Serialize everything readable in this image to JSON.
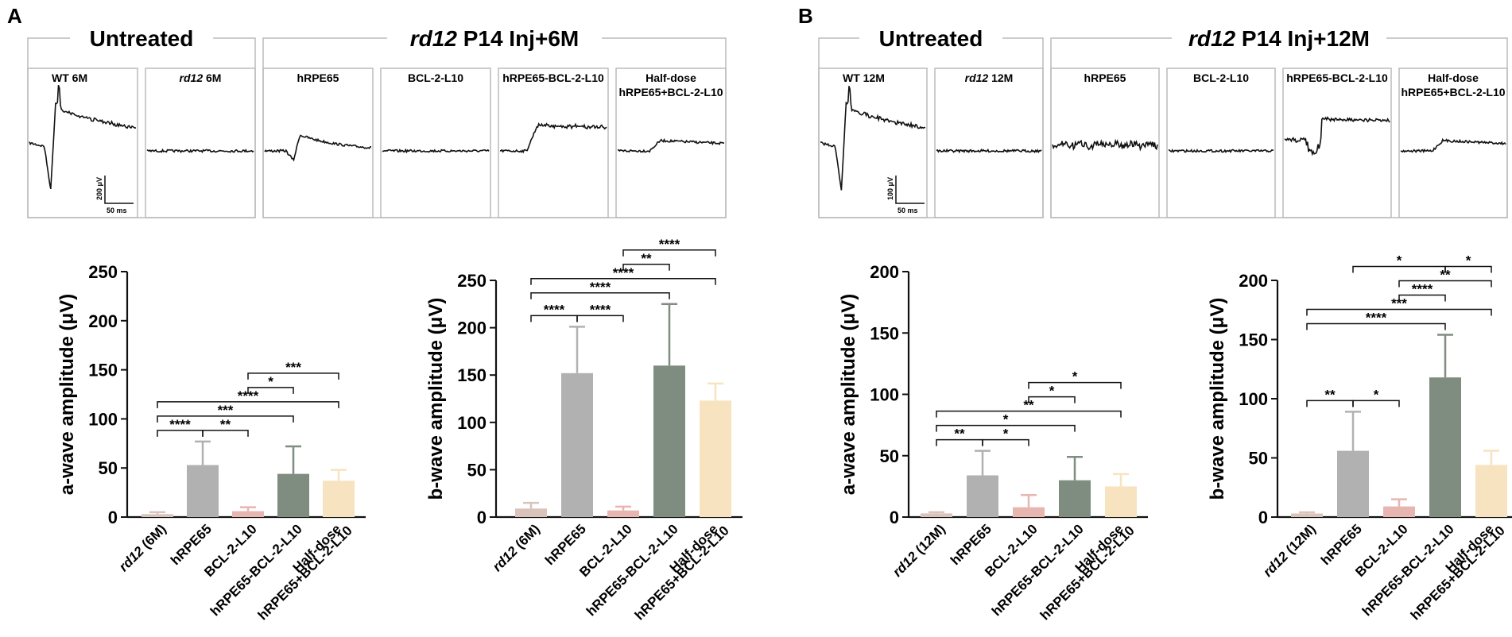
{
  "panels": [
    {
      "letter": "A",
      "group_untreated": "Untreated",
      "group_treated_italic": "rd12",
      "group_treated_rest": " P14 Inj+6M",
      "traces": [
        {
          "label": "WT 6M",
          "italic": "",
          "kind": "wt"
        },
        {
          "label": " 6M",
          "italic": "rd12",
          "kind": "flat"
        },
        {
          "label": "hRPE65",
          "italic": "",
          "kind": "mid"
        },
        {
          "label": "BCL-2-L10",
          "italic": "",
          "kind": "flat"
        },
        {
          "label": "hRPE65-BCL-2-L10",
          "italic": "",
          "kind": "strong"
        },
        {
          "label": "Half-dose",
          "label2": "hRPE65+BCL-2-L10",
          "italic": "",
          "kind": "weak"
        }
      ],
      "scale_v": "200 μV",
      "scale_t": "50 ms"
    },
    {
      "letter": "B",
      "group_untreated": "Untreated",
      "group_treated_italic": "rd12",
      "group_treated_rest": " P14 Inj+12M",
      "traces": [
        {
          "label": "WT 12M",
          "italic": "",
          "kind": "wt"
        },
        {
          "label": " 12M",
          "italic": "rd12",
          "kind": "flat"
        },
        {
          "label": "hRPE65",
          "italic": "",
          "kind": "noisy"
        },
        {
          "label": "BCL-2-L10",
          "italic": "",
          "kind": "flat"
        },
        {
          "label": "hRPE65-BCL-2-L10",
          "italic": "",
          "kind": "strong12"
        },
        {
          "label": "Half-dose",
          "label2": "hRPE65+BCL-2-L10",
          "italic": "",
          "kind": "weak"
        }
      ],
      "scale_v": "100 μV",
      "scale_t": "50 ms"
    }
  ],
  "colors": [
    "#d9c3bb",
    "#b1b1b1",
    "#e7b6b1",
    "#7f8d81",
    "#f7e3bf"
  ],
  "chart_data": [
    {
      "type": "bar",
      "title": "",
      "ylabel": "a-wave amplitude (μV)",
      "ylim": [
        0,
        250
      ],
      "yticks": [
        "0",
        "50",
        "100",
        "150",
        "200",
        "250"
      ],
      "categories": [
        {
          "italic": "rd12",
          "rest": " (6M)"
        },
        {
          "italic": "",
          "rest": "hRPE65"
        },
        {
          "italic": "",
          "rest": "BCL-2-L10"
        },
        {
          "italic": "",
          "rest": "hRPE65-BCL-2-L10"
        },
        {
          "italic": "",
          "rest": "Half-dose",
          "rest2": "hRPE65+BCL-2-L10"
        }
      ],
      "values": [
        3,
        53,
        6,
        44,
        37
      ],
      "errors": [
        2,
        24,
        4,
        28,
        11
      ],
      "significance": [
        {
          "from": 0,
          "to": 1,
          "label": "****"
        },
        {
          "from": 1,
          "to": 2,
          "label": "**"
        },
        {
          "from": 0,
          "to": 3,
          "label": "***"
        },
        {
          "from": 0,
          "to": 4,
          "label": "****"
        },
        {
          "from": 2,
          "to": 3,
          "label": "*"
        },
        {
          "from": 2,
          "to": 4,
          "label": "***"
        }
      ]
    },
    {
      "type": "bar",
      "title": "",
      "ylabel": "b-wave amplitude (μV)",
      "ylim": [
        0,
        250
      ],
      "yticks": [
        "0",
        "50",
        "100",
        "150",
        "200",
        "250"
      ],
      "categories": [
        {
          "italic": "rd12",
          "rest": " (6M)"
        },
        {
          "italic": "",
          "rest": "hRPE65"
        },
        {
          "italic": "",
          "rest": "BCL-2-L10"
        },
        {
          "italic": "",
          "rest": "hRPE65-BCL-2-L10"
        },
        {
          "italic": "",
          "rest": "Half-dose",
          "rest2": "hRPE65+BCL-2-L10"
        }
      ],
      "values": [
        9,
        152,
        7,
        160,
        123
      ],
      "errors": [
        6,
        49,
        4,
        65,
        18
      ],
      "significance": [
        {
          "from": 0,
          "to": 1,
          "label": "****"
        },
        {
          "from": 1,
          "to": 2,
          "label": "****"
        },
        {
          "from": 0,
          "to": 3,
          "label": "****"
        },
        {
          "from": 0,
          "to": 4,
          "label": "****"
        },
        {
          "from": 2,
          "to": 3,
          "label": "**"
        },
        {
          "from": 2,
          "to": 4,
          "label": "****"
        }
      ]
    },
    {
      "type": "bar",
      "title": "",
      "ylabel": "a-wave amplitude (μV)",
      "ylim": [
        0,
        200
      ],
      "yticks": [
        "0",
        "50",
        "100",
        "150",
        "200"
      ],
      "categories": [
        {
          "italic": "rd12",
          "rest": " (12M)"
        },
        {
          "italic": "",
          "rest": "hRPE65"
        },
        {
          "italic": "",
          "rest": "BCL-2-L10"
        },
        {
          "italic": "",
          "rest": "hRPE65-BCL-2-L10"
        },
        {
          "italic": "",
          "rest": "Half-dose",
          "rest2": "hRPE65+BCL-2-L10"
        }
      ],
      "values": [
        3,
        34,
        8,
        30,
        25
      ],
      "errors": [
        1,
        20,
        10,
        19,
        10
      ],
      "significance": [
        {
          "from": 0,
          "to": 1,
          "label": "**"
        },
        {
          "from": 1,
          "to": 2,
          "label": "*"
        },
        {
          "from": 0,
          "to": 3,
          "label": "*"
        },
        {
          "from": 0,
          "to": 4,
          "label": "**"
        },
        {
          "from": 2,
          "to": 3,
          "label": "*"
        },
        {
          "from": 2,
          "to": 4,
          "label": "*"
        }
      ]
    },
    {
      "type": "bar",
      "title": "",
      "ylabel": "b-wave amplitude (μV)",
      "ylim": [
        0,
        200
      ],
      "yticks": [
        "0",
        "50",
        "100",
        "150",
        "200"
      ],
      "categories": [
        {
          "italic": "rd12",
          "rest": " (12M)"
        },
        {
          "italic": "",
          "rest": "hRPE65"
        },
        {
          "italic": "",
          "rest": "BCL-2-L10"
        },
        {
          "italic": "",
          "rest": "hRPE65-BCL-2-L10"
        },
        {
          "italic": "",
          "rest": "Half-dose",
          "rest2": "hRPE65+BCL-2-L10"
        }
      ],
      "values": [
        3,
        56,
        9,
        118,
        44
      ],
      "errors": [
        1,
        33,
        6,
        36,
        12
      ],
      "significance": [
        {
          "from": 0,
          "to": 1,
          "label": "**"
        },
        {
          "from": 1,
          "to": 2,
          "label": "*"
        },
        {
          "from": 0,
          "to": 3,
          "label": "****"
        },
        {
          "from": 0,
          "to": 4,
          "label": "***"
        },
        {
          "from": 2,
          "to": 3,
          "label": "****"
        },
        {
          "from": 2,
          "to": 4,
          "label": "**"
        },
        {
          "from": 1,
          "to": 3,
          "label": "*"
        },
        {
          "from": 3,
          "to": 4,
          "label": "*"
        }
      ]
    }
  ]
}
